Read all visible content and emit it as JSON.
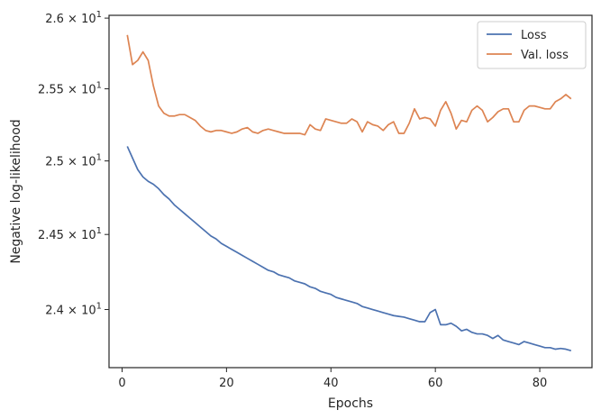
{
  "chart_data": {
    "type": "line",
    "title": "",
    "xlabel": "Epochs",
    "ylabel": "Negative log-likelihood",
    "xlim": [
      -2.5,
      90
    ],
    "ylim": [
      23.62,
      26.02
    ],
    "yscale": "log",
    "grid": false,
    "legend_position": "top-right",
    "x_ticks": [
      {
        "value": 0,
        "label": "0"
      },
      {
        "value": 20,
        "label": "20"
      },
      {
        "value": 40,
        "label": "40"
      },
      {
        "value": 60,
        "label": "60"
      },
      {
        "value": 80,
        "label": "80"
      }
    ],
    "y_ticks": [
      {
        "value": 24.0,
        "mant": "2.4",
        "exp": "1"
      },
      {
        "value": 24.5,
        "mant": "2.45",
        "exp": "1"
      },
      {
        "value": 25.0,
        "mant": "2.5",
        "exp": "1"
      },
      {
        "value": 25.5,
        "mant": "2.55",
        "exp": "1"
      },
      {
        "value": 26.0,
        "mant": "2.6",
        "exp": "1"
      }
    ],
    "x": [
      1,
      2,
      3,
      4,
      5,
      6,
      7,
      8,
      9,
      10,
      11,
      12,
      13,
      14,
      15,
      16,
      17,
      18,
      19,
      20,
      21,
      22,
      23,
      24,
      25,
      26,
      27,
      28,
      29,
      30,
      31,
      32,
      33,
      34,
      35,
      36,
      37,
      38,
      39,
      40,
      41,
      42,
      43,
      44,
      45,
      46,
      47,
      48,
      49,
      50,
      51,
      52,
      53,
      54,
      55,
      56,
      57,
      58,
      59,
      60,
      61,
      62,
      63,
      64,
      65,
      66,
      67,
      68,
      69,
      70,
      71,
      72,
      73,
      74,
      75,
      76,
      77,
      78,
      79,
      80,
      81,
      82,
      83,
      84,
      85,
      86
    ],
    "series": [
      {
        "name": "Loss",
        "color": "#4c72b0",
        "values": [
          25.1,
          25.02,
          24.94,
          24.89,
          24.86,
          24.84,
          24.81,
          24.77,
          24.74,
          24.7,
          24.67,
          24.64,
          24.61,
          24.58,
          24.55,
          24.52,
          24.49,
          24.47,
          24.44,
          24.42,
          24.4,
          24.38,
          24.36,
          24.34,
          24.32,
          24.3,
          24.28,
          24.26,
          24.25,
          24.23,
          24.22,
          24.21,
          24.19,
          24.18,
          24.17,
          24.15,
          24.14,
          24.12,
          24.11,
          24.1,
          24.08,
          24.07,
          24.06,
          24.05,
          24.04,
          24.02,
          24.01,
          24.0,
          23.99,
          23.98,
          23.97,
          23.96,
          23.955,
          23.95,
          23.94,
          23.93,
          23.92,
          23.92,
          23.98,
          24.0,
          23.9,
          23.9,
          23.91,
          23.89,
          23.86,
          23.87,
          23.85,
          23.84,
          23.84,
          23.83,
          23.81,
          23.83,
          23.8,
          23.79,
          23.78,
          23.77,
          23.79,
          23.78,
          23.77,
          23.76,
          23.75,
          23.75,
          23.74,
          23.745,
          23.74,
          23.73
        ]
      },
      {
        "name": "Val. loss",
        "color": "#dd8452",
        "values": [
          25.88,
          25.67,
          25.7,
          25.76,
          25.7,
          25.52,
          25.38,
          25.33,
          25.31,
          25.31,
          25.32,
          25.32,
          25.3,
          25.28,
          25.24,
          25.21,
          25.2,
          25.21,
          25.21,
          25.2,
          25.19,
          25.2,
          25.22,
          25.23,
          25.2,
          25.19,
          25.21,
          25.22,
          25.21,
          25.2,
          25.19,
          25.19,
          25.19,
          25.19,
          25.18,
          25.25,
          25.22,
          25.21,
          25.29,
          25.28,
          25.27,
          25.26,
          25.26,
          25.29,
          25.27,
          25.2,
          25.27,
          25.25,
          25.24,
          25.21,
          25.25,
          25.27,
          25.19,
          25.19,
          25.26,
          25.36,
          25.29,
          25.3,
          25.29,
          25.24,
          25.35,
          25.41,
          25.33,
          25.22,
          25.28,
          25.27,
          25.35,
          25.38,
          25.35,
          25.27,
          25.3,
          25.34,
          25.36,
          25.36,
          25.27,
          25.27,
          25.35,
          25.38,
          25.38,
          25.37,
          25.36,
          25.36,
          25.41,
          25.43,
          25.46,
          25.43
        ]
      }
    ]
  }
}
